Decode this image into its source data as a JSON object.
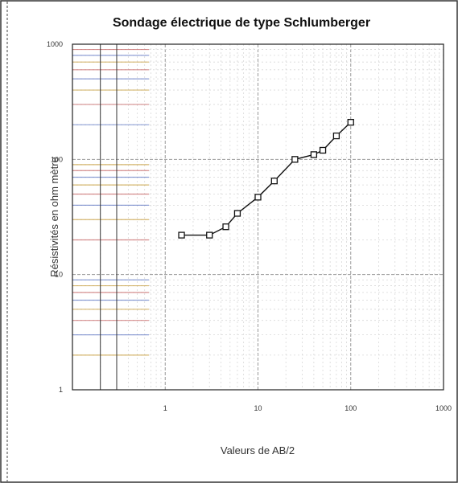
{
  "chart_data": {
    "type": "line",
    "title": "Sondage électrique de type Schlumberger",
    "xlabel": "Valeurs de AB/2",
    "ylabel": "Résistivités en ohm mètre",
    "x_scale": "log",
    "y_scale": "log",
    "xlim": [
      0.1,
      1000
    ],
    "ylim": [
      1,
      1000
    ],
    "x_ticks": [
      "1",
      "10",
      "100",
      "1000"
    ],
    "y_ticks": [
      "1",
      "10",
      "100",
      "1000"
    ],
    "grid": true,
    "legend": "none",
    "series": [
      {
        "values": [
          {
            "x": 1.5,
            "y": 22
          },
          {
            "x": 3,
            "y": 22
          },
          {
            "x": 4.5,
            "y": 26
          },
          {
            "x": 6,
            "y": 34
          },
          {
            "x": 10,
            "y": 47
          },
          {
            "x": 15,
            "y": 65
          },
          {
            "x": 25,
            "y": 100
          },
          {
            "x": 40,
            "y": 110
          },
          {
            "x": 50,
            "y": 120
          },
          {
            "x": 70,
            "y": 160
          },
          {
            "x": 100,
            "y": 210
          }
        ]
      }
    ]
  },
  "colors": {
    "line": "#111111",
    "marker_fill": "#ffffff",
    "marker_stroke": "#111111",
    "grid_major": "#999999",
    "grid_minor": "#d8d8d8",
    "frame": "#222222",
    "accent_lines": [
      "#c8a040",
      "#6a80c8",
      "#c86a6a"
    ]
  }
}
